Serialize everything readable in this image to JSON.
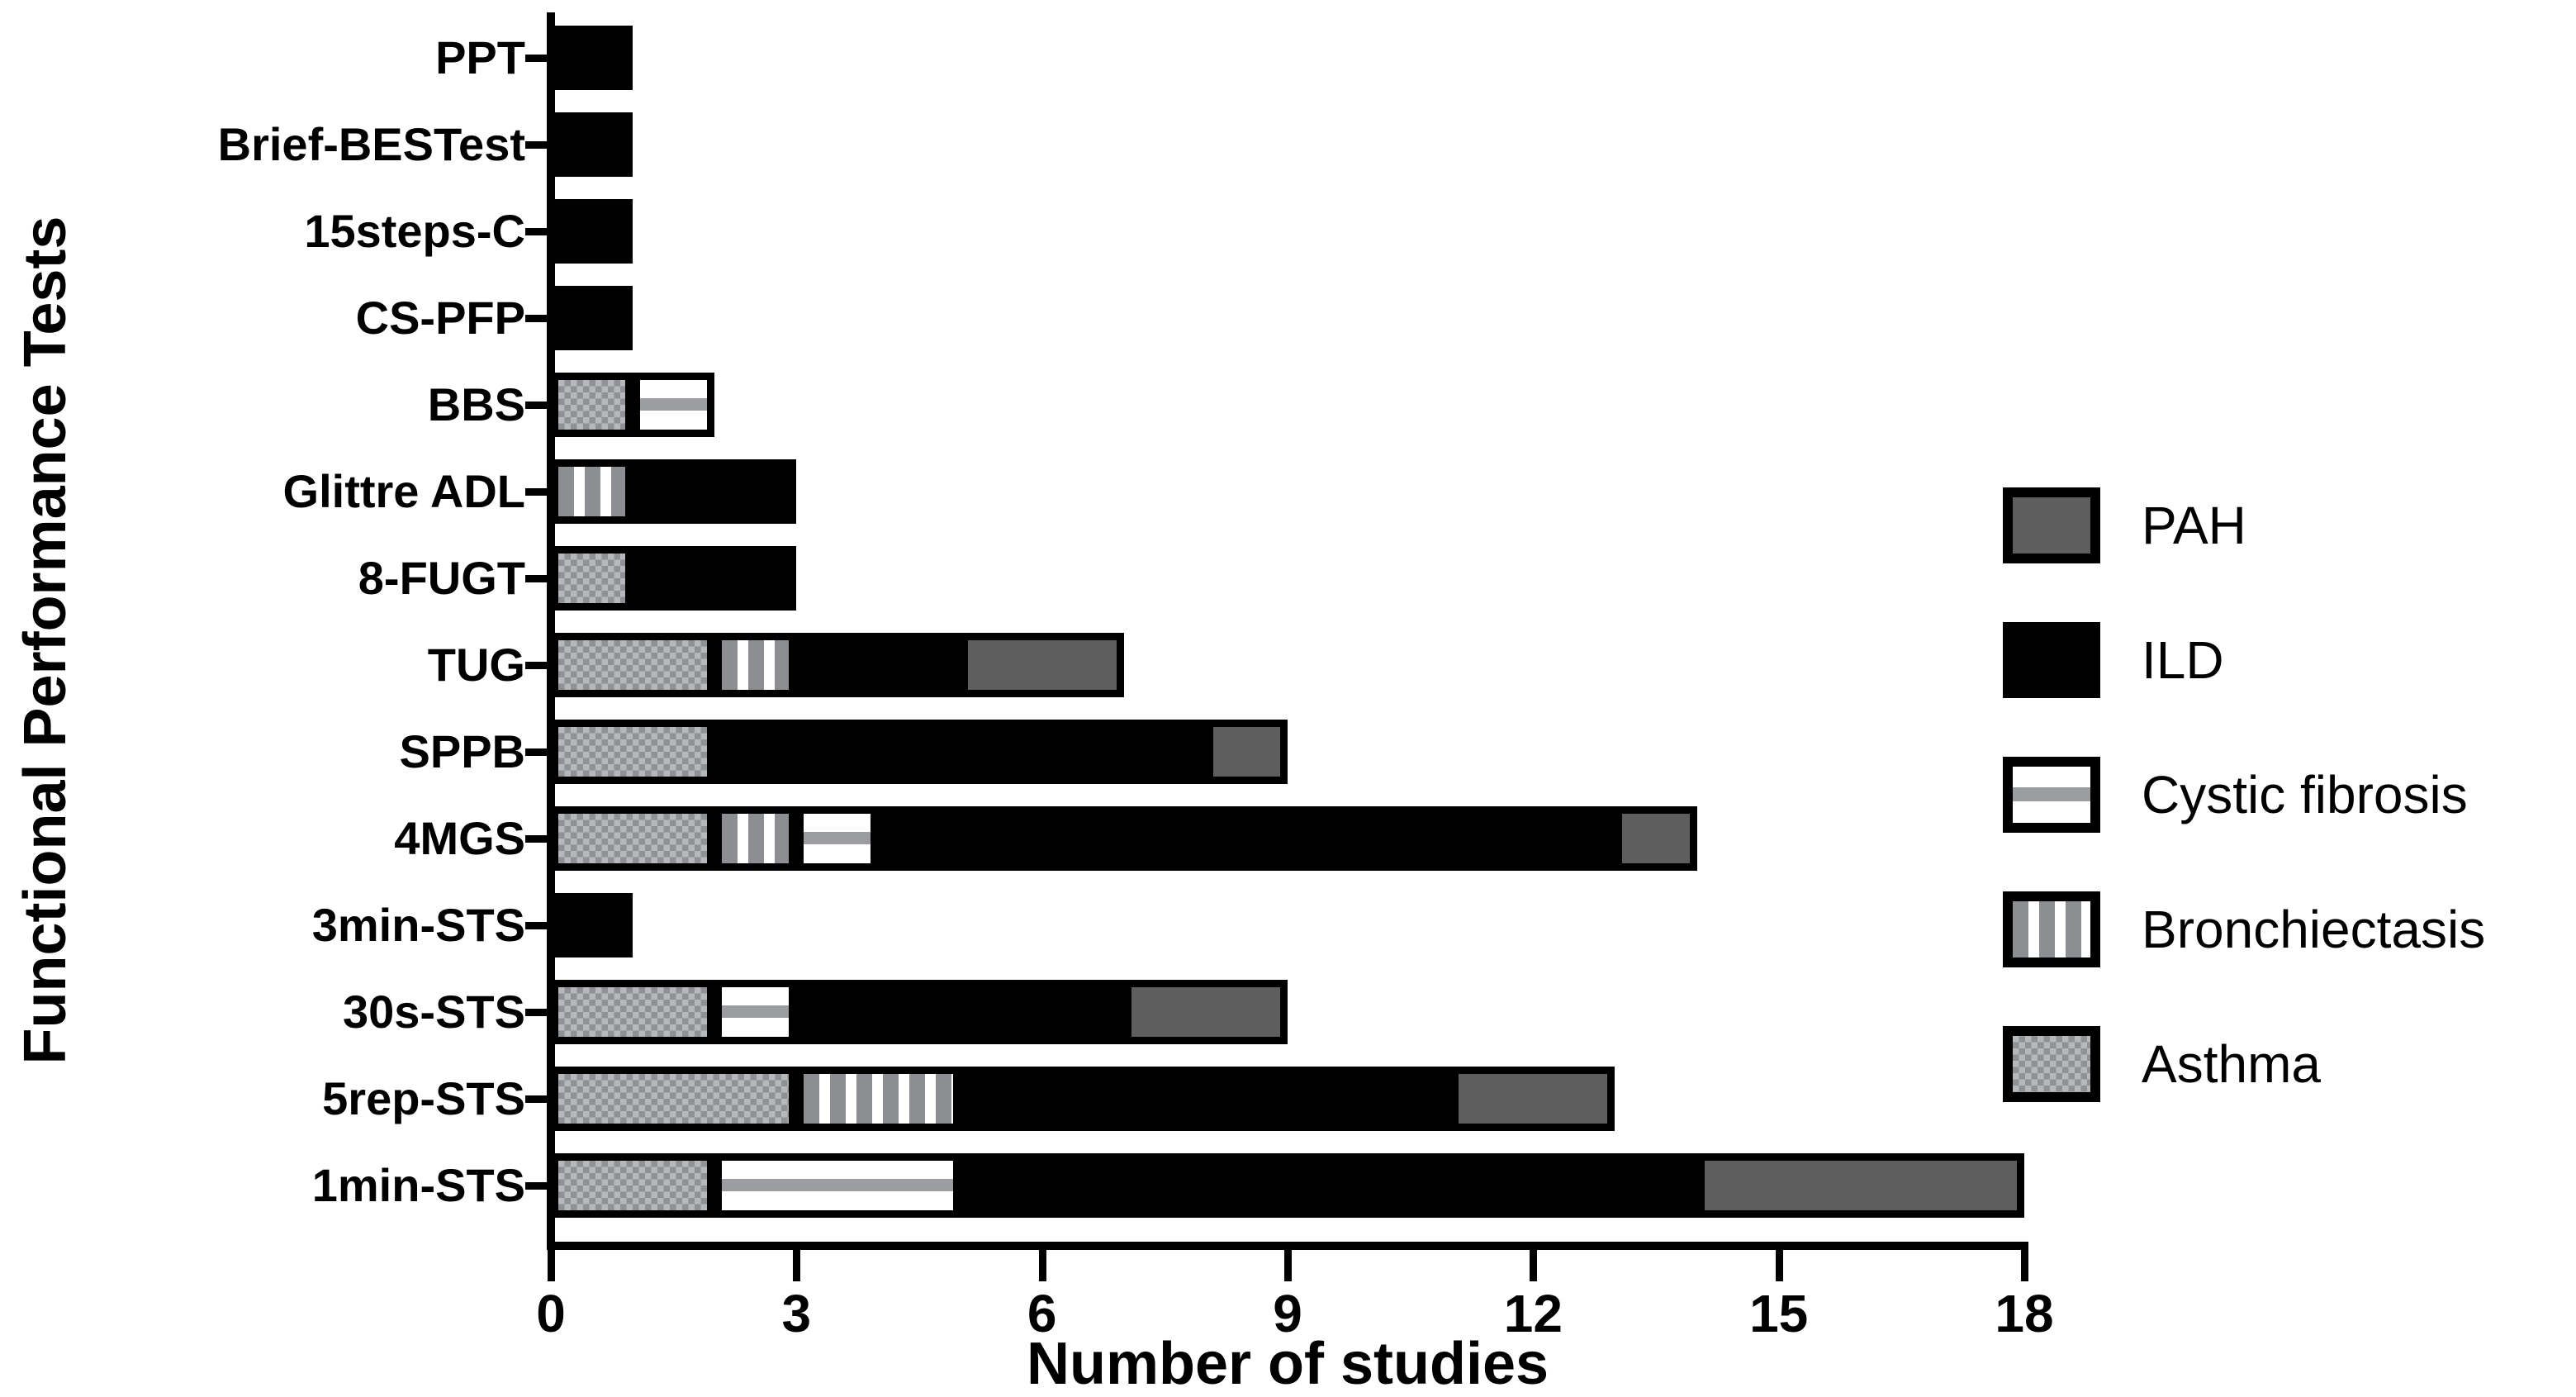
{
  "figure": {
    "background": "#ffffff",
    "text_color": "#000000"
  },
  "chart_data": {
    "type": "bar",
    "orientation": "horizontal",
    "stacked": true,
    "title": "",
    "xlabel": "Number of studies",
    "ylabel": "Functional Performance Tests",
    "xlim": [
      0,
      18
    ],
    "xticks": [
      0,
      3,
      6,
      9,
      12,
      15,
      18
    ],
    "grid": false,
    "legend_position": "right",
    "categories": [
      "PPT",
      "Brief-BESTest",
      "15steps-C",
      "CS-PFP",
      "BBS",
      "Glittre ADL",
      "8-FUGT",
      "TUG",
      "SPPB",
      "4MGS",
      "3min-STS",
      "30s-STS",
      "5rep-STS",
      "1min-STS"
    ],
    "series": [
      {
        "name": "Asthma",
        "pattern": "checker",
        "values": [
          0,
          0,
          0,
          0,
          1,
          0,
          1,
          2,
          2,
          2,
          0,
          2,
          3,
          2
        ]
      },
      {
        "name": "Bronchiectasis",
        "pattern": "vstripes",
        "values": [
          0,
          0,
          0,
          0,
          0,
          1,
          0,
          1,
          0,
          1,
          0,
          0,
          2,
          0
        ]
      },
      {
        "name": "Cystic fibrosis",
        "pattern": "hband",
        "values": [
          0,
          0,
          0,
          0,
          1,
          0,
          0,
          0,
          0,
          1,
          0,
          1,
          0,
          3
        ]
      },
      {
        "name": "ILD",
        "pattern": "solid_black",
        "values": [
          1,
          1,
          1,
          1,
          0,
          2,
          2,
          2,
          6,
          9,
          1,
          4,
          6,
          9
        ]
      },
      {
        "name": "PAH",
        "pattern": "solid_gray",
        "values": [
          0,
          0,
          0,
          0,
          0,
          0,
          0,
          2,
          1,
          1,
          0,
          2,
          2,
          4
        ]
      }
    ],
    "legend_order": [
      "PAH",
      "ILD",
      "Cystic fibrosis",
      "Bronchiectasis",
      "Asthma"
    ],
    "bar_totals": [
      1,
      1,
      1,
      1,
      2,
      3,
      3,
      7,
      9,
      14,
      1,
      9,
      13,
      18
    ],
    "colors": {
      "bar_border": "#000000",
      "ild": "#000000",
      "pah": "#5e5e5e",
      "checker_dark": "#8f9194",
      "checker_light": "#b6b8bb",
      "stripe_gray": "#8c8e91",
      "stripe_white": "#ffffff",
      "band_gray": "#9b9da0",
      "band_white": "#ffffff"
    }
  }
}
